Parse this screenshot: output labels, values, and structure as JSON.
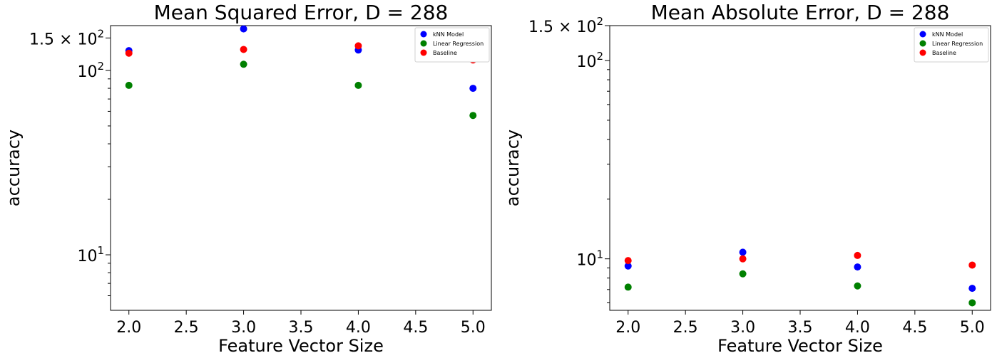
{
  "chart_data": [
    {
      "type": "scatter",
      "title": "Mean Squared Error, D = 288",
      "xlabel": "Feature Vector Size",
      "ylabel": "accuracy",
      "yscale": "log",
      "xlim": [
        1.84,
        5.16
      ],
      "ylim": [
        5.0,
        175.0
      ],
      "x": [
        2.0,
        3.0,
        4.0,
        5.0
      ],
      "x_tick_labels": [
        "2.0",
        "2.5",
        "3.0",
        "3.5",
        "4.0",
        "4.5",
        "5.0"
      ],
      "x_tick_values": [
        2.0,
        2.5,
        3.0,
        3.5,
        4.0,
        4.5,
        5.0
      ],
      "y_tick_labels": [
        "10^1",
        "10^2",
        "1.5 × 10^2"
      ],
      "y_tick_values": [
        10,
        100,
        150
      ],
      "grid": false,
      "legend": "top-right",
      "series": [
        {
          "name": "kNN Model",
          "color": "#0000ff",
          "values": [
            128,
            168,
            129,
            80
          ]
        },
        {
          "name": "Linear Regression",
          "color": "#008000",
          "values": [
            83,
            108,
            83,
            57
          ]
        },
        {
          "name": "Baseline",
          "color": "#ff0000",
          "values": [
            124,
            130,
            136,
            114
          ]
        }
      ]
    },
    {
      "type": "scatter",
      "title": "Mean Absolute Error, D = 288",
      "xlabel": "Feature Vector Size",
      "ylabel": "accuracy",
      "yscale": "log",
      "xlim": [
        1.84,
        5.16
      ],
      "ylim": [
        5.5,
        150.0
      ],
      "x": [
        2.0,
        3.0,
        4.0,
        5.0
      ],
      "x_tick_labels": [
        "2.0",
        "2.5",
        "3.0",
        "3.5",
        "4.0",
        "4.5",
        "5.0"
      ],
      "x_tick_values": [
        2.0,
        2.5,
        3.0,
        3.5,
        4.0,
        4.5,
        5.0
      ],
      "y_tick_labels": [
        "10^1",
        "10^2",
        "1.5 × 10^2"
      ],
      "y_tick_values": [
        10,
        100,
        150
      ],
      "grid": false,
      "legend": "top-right",
      "series": [
        {
          "name": "kNN Model",
          "color": "#0000ff",
          "values": [
            9.2,
            10.8,
            9.1,
            7.1
          ]
        },
        {
          "name": "Linear Regression",
          "color": "#008000",
          "values": [
            7.2,
            8.4,
            7.3,
            6.0
          ]
        },
        {
          "name": "Baseline",
          "color": "#ff0000",
          "values": [
            9.8,
            10.0,
            10.4,
            9.3
          ]
        }
      ]
    }
  ]
}
